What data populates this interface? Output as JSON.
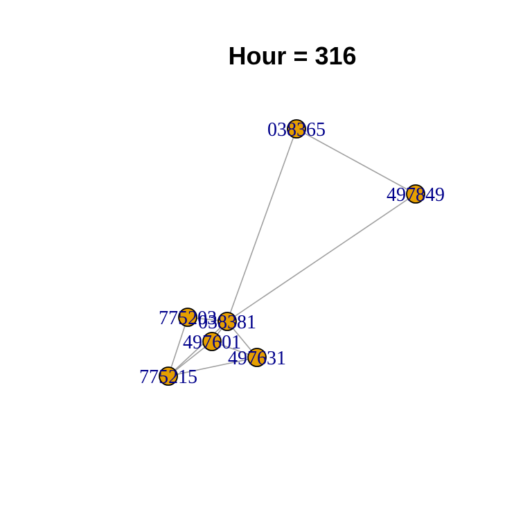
{
  "title": "Hour = 316",
  "colors": {
    "node_fill": "#E69F00",
    "node_stroke": "#000000",
    "edge": "#A0A0A0",
    "label": "#00008B"
  },
  "nodes": [
    {
      "id": "038365",
      "label": "038365"
    },
    {
      "id": "497849",
      "label": "497849"
    },
    {
      "id": "775203",
      "label": "775203"
    },
    {
      "id": "038381",
      "label": "038381"
    },
    {
      "id": "497601",
      "label": "497601"
    },
    {
      "id": "497631",
      "label": "497631"
    },
    {
      "id": "775215",
      "label": "775215"
    }
  ],
  "edges": [
    [
      "038365",
      "497849"
    ],
    [
      "038365",
      "038381"
    ],
    [
      "497849",
      "038381"
    ],
    [
      "775203",
      "038381"
    ],
    [
      "775203",
      "775215"
    ],
    [
      "038381",
      "497601"
    ],
    [
      "038381",
      "497631"
    ],
    [
      "038381",
      "775215"
    ],
    [
      "497601",
      "775215"
    ],
    [
      "497601",
      "497631"
    ],
    [
      "497631",
      "775215"
    ]
  ]
}
